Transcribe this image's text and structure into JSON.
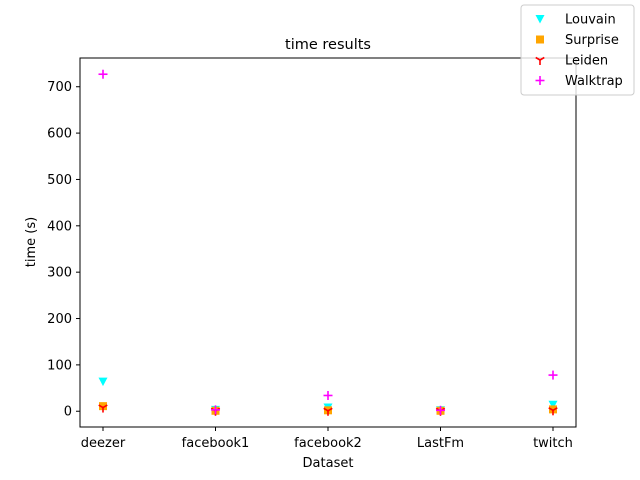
{
  "chart_data": {
    "type": "scatter",
    "title": "time results",
    "xlabel": "Dataset",
    "ylabel": "time (s)",
    "categories": [
      "deezer",
      "facebook1",
      "facebook2",
      "LastFm",
      "twitch"
    ],
    "ylim": [
      -34,
      762
    ],
    "yticks": [
      0,
      100,
      200,
      300,
      400,
      500,
      600,
      700
    ],
    "legend_position": "top-right",
    "series": [
      {
        "name": "Louvain",
        "marker": "triangle-down",
        "color": "#00ffff",
        "values": [
          64,
          3,
          8,
          2,
          14
        ]
      },
      {
        "name": "Surprise",
        "marker": "square",
        "color": "#ffa500",
        "values": [
          11,
          1,
          2,
          1,
          4
        ]
      },
      {
        "name": "Leiden",
        "marker": "tri-down",
        "color": "#ff0000",
        "values": [
          8,
          1,
          1,
          1,
          2
        ]
      },
      {
        "name": "Walktrap",
        "marker": "plus",
        "color": "#ff00ff",
        "values": [
          727,
          3,
          34,
          2,
          78
        ]
      }
    ]
  }
}
